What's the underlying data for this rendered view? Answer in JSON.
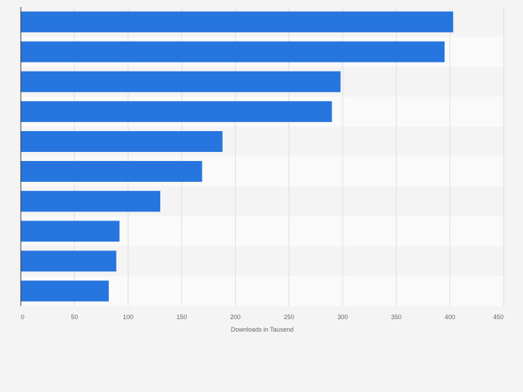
{
  "chart_data": {
    "type": "bar",
    "orientation": "horizontal",
    "categories": [
      "",
      "",
      "",
      "",
      "",
      "",
      "",
      "",
      "",
      ""
    ],
    "values": [
      403,
      395,
      298,
      290,
      188,
      169,
      130,
      92,
      89,
      82
    ],
    "xlabel": "Downloads in Tausend",
    "ylabel": "",
    "xlim": [
      0,
      450
    ],
    "ticks": [
      0,
      50,
      100,
      150,
      200,
      250,
      300,
      350,
      400,
      450
    ],
    "grid": true,
    "bar_color": "#2775de",
    "band_colors": [
      "#f4f4f4",
      "#fafafa"
    ],
    "gridline_color": "#dedede",
    "axis_color": "#333333",
    "text_color": "#666666"
  }
}
